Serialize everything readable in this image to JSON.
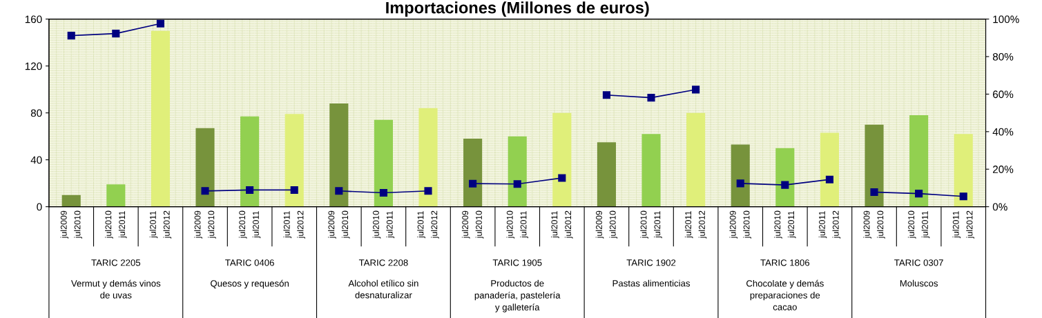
{
  "chart_data": {
    "type": "bar",
    "title": "Importaciones (Millones de euros)",
    "categories": [
      "jul2009\njul2010",
      "jul2010\njul2011",
      "jul2011\njul2012",
      "jul2009\njul2010",
      "jul2010\njul2011",
      "jul2011\njul2012",
      "jul2009\njul2010",
      "jul2010\njul2011",
      "jul2011\njul2012",
      "jul2009\njul2010",
      "jul2010\njul2011",
      "jul2011\njul2012",
      "jul2009\njul2010",
      "jul2010\njul2011",
      "jul2011\njul2012",
      "jul2009\njul2010",
      "jul2010\njul2011",
      "jul2011\njul2012",
      "jul2009\njul2010",
      "jul2010\njul2011",
      "jul2011\njul2012"
    ],
    "series": [
      {
        "values": [
          10,
          19,
          150,
          67,
          77,
          79,
          88,
          74,
          84,
          58,
          60,
          80,
          55,
          62,
          80,
          53,
          50,
          63,
          70,
          78,
          62
        ],
        "colors": [
          "#77933c",
          "#92d050",
          "#e0ef7a",
          "#77933c",
          "#92d050",
          "#e0ef7a",
          "#77933c",
          "#92d050",
          "#e0ef7a",
          "#77933c",
          "#92d050",
          "#e0ef7a",
          "#77933c",
          "#92d050",
          "#e0ef7a",
          "#77933c",
          "#92d050",
          "#e0ef7a",
          "#77933c",
          "#92d050",
          "#e0ef7a"
        ]
      },
      {
        "type": "line",
        "axis": "y2",
        "color": "#000080",
        "values": [
          91.2,
          92.3,
          97.6,
          null,
          null,
          null,
          null,
          null,
          null,
          null,
          null,
          null,
          null,
          null,
          null,
          null,
          null,
          null,
          null,
          null,
          null
        ]
      },
      {
        "type": "line",
        "axis": "y2",
        "color": "#000080",
        "values": [
          null,
          null,
          null,
          8.4,
          8.9,
          8.9,
          null,
          null,
          null,
          null,
          null,
          null,
          null,
          null,
          null,
          null,
          null,
          null,
          null,
          null,
          null
        ]
      },
      {
        "type": "line",
        "axis": "y2",
        "color": "#000080",
        "values": [
          null,
          null,
          null,
          null,
          null,
          null,
          8.4,
          7.4,
          8.4,
          null,
          null,
          null,
          null,
          null,
          null,
          null,
          null,
          null,
          null,
          null,
          null
        ]
      },
      {
        "type": "line",
        "axis": "y2",
        "color": "#000080",
        "values": [
          null,
          null,
          null,
          null,
          null,
          null,
          null,
          null,
          null,
          12.3,
          12.1,
          15.3,
          null,
          null,
          null,
          null,
          null,
          null,
          null,
          null,
          null
        ]
      },
      {
        "type": "line",
        "axis": "y2",
        "color": "#000080",
        "values": [
          null,
          null,
          null,
          null,
          null,
          null,
          null,
          null,
          null,
          null,
          null,
          null,
          59.5,
          58.1,
          62.4,
          null,
          null,
          null,
          null,
          null,
          null
        ]
      },
      {
        "type": "line",
        "axis": "y2",
        "color": "#000080",
        "values": [
          null,
          null,
          null,
          null,
          null,
          null,
          null,
          null,
          null,
          null,
          null,
          null,
          null,
          null,
          null,
          12.4,
          11.6,
          14.5,
          null,
          null,
          null
        ]
      },
      {
        "type": "line",
        "axis": "y2",
        "color": "#000080",
        "values": [
          null,
          null,
          null,
          null,
          null,
          null,
          null,
          null,
          null,
          null,
          null,
          null,
          null,
          null,
          null,
          null,
          null,
          null,
          7.8,
          7.0,
          5.5
        ]
      }
    ],
    "ylim": [
      0,
      160
    ],
    "yticks": [
      0,
      40,
      80,
      120,
      160
    ],
    "y2lim": [
      0,
      100
    ],
    "y2ticks": [
      {
        "value": 0,
        "label": "0%"
      },
      {
        "value": 20,
        "label": "20%"
      },
      {
        "value": 40,
        "label": "40%"
      },
      {
        "value": 60,
        "label": "60%"
      },
      {
        "value": 80,
        "label": "80%"
      },
      {
        "value": 100,
        "label": "100%"
      }
    ],
    "marker": "square",
    "grid": true,
    "legend": false,
    "annotations": [
      "TARIC 2205",
      "Vermut y demás vinos\nde uvas",
      "TARIC 0406",
      "Quesos y requesón",
      "TARIC 2208",
      "Alcohol etílico sin\ndesnaturalizar",
      "TARIC 1905",
      "Productos de\npanadería, pastelería\ny galletería",
      "TARIC 1902",
      "Pastas alimenticias",
      "TARIC 1806",
      "Chocolate y demás\npreparaciones de\ncacao",
      "TARIC 0307",
      "Moluscos"
    ]
  }
}
